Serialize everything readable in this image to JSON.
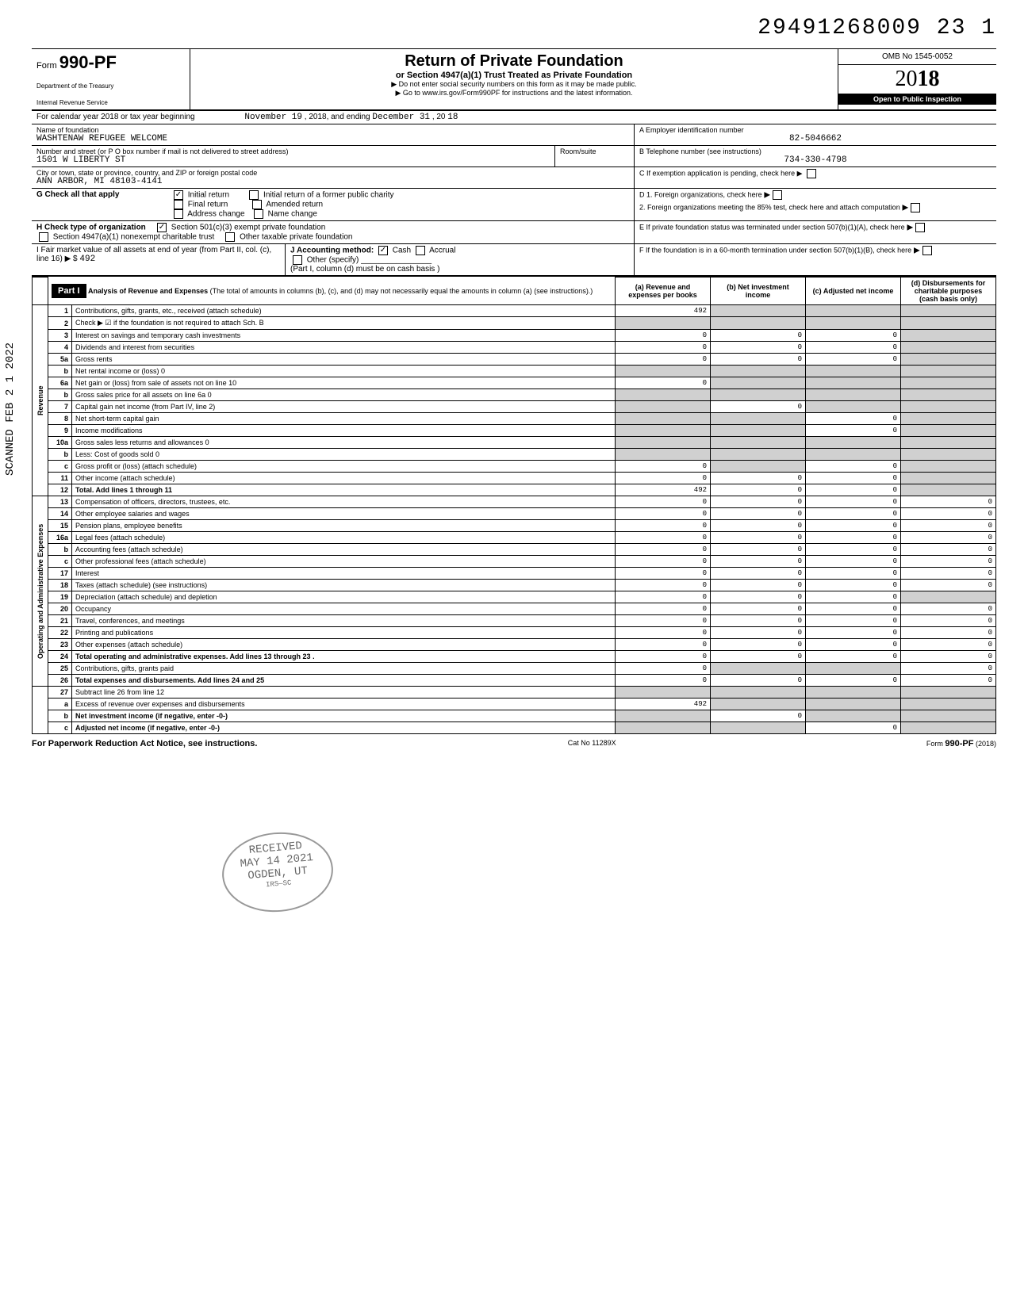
{
  "top_number": "29491268009 23  1",
  "form": {
    "name_prefix": "Form",
    "name": "990-PF",
    "dept1": "Department of the Treasury",
    "dept2": "Internal Revenue Service",
    "title": "Return of Private Foundation",
    "subtitle": "or Section 4947(a)(1) Trust Treated as Private Foundation",
    "warn": "▶ Do not enter social security numbers on this form as it may be made public.",
    "goto": "▶ Go to www.irs.gov/Form990PF for instructions and the latest information.",
    "omb": "OMB No 1545-0052",
    "year_prefix": "20",
    "year_bold": "18",
    "inspection": "Open to Public Inspection"
  },
  "period": {
    "label_a": "For calendar year 2018 or tax year beginning",
    "begin": "November 19",
    "label_b": ", 2018, and ending",
    "end": "December 31",
    "label_c": ", 20",
    "end_yr": "18"
  },
  "ident": {
    "name_label": "Name of foundation",
    "name": "WASHTENAW REFUGEE WELCOME",
    "street_label": "Number and street (or P O box number if mail is not delivered to street address)",
    "street": "1501 W LIBERTY ST",
    "room_label": "Room/suite",
    "city_label": "City or town, state or province, country, and ZIP or foreign postal code",
    "city": "ANN ARBOR, MI 48103-4141",
    "ein_label": "A  Employer identification number",
    "ein": "82-5046662",
    "tel_label": "B  Telephone number (see instructions)",
    "tel": "734-330-4798",
    "c_label": "C  If exemption application is pending, check here ▶"
  },
  "g_row": {
    "label": "G  Check all that apply",
    "opts": [
      "Initial return",
      "Final return",
      "Address change",
      "Initial return of a former public charity",
      "Amended return",
      "Name change"
    ],
    "d_label": "D  1. Foreign organizations, check here",
    "d2_label": "2. Foreign organizations meeting the 85% test, check here and attach computation"
  },
  "h_row": {
    "label": "H  Check type of organization",
    "opt1": "Section 501(c)(3) exempt private foundation",
    "opt2": "Section 4947(a)(1) nonexempt charitable trust",
    "opt3": "Other taxable private foundation",
    "e_label": "E  If private foundation status was terminated under section 507(b)(1)(A), check here"
  },
  "i_row": {
    "label": "I   Fair market value of all assets at end of year (from Part II, col. (c), line 16) ▶ $",
    "value": "492",
    "j_label": "J  Accounting method:",
    "j_cash": "Cash",
    "j_accrual": "Accrual",
    "j_other": "Other (specify)",
    "j_note": "(Part I, column (d) must be on cash basis )",
    "f_label": "F  If the foundation is in a 60-month termination under section 507(b)(1)(B), check here"
  },
  "part1": {
    "header": "Part I",
    "title": "Analysis of Revenue and Expenses",
    "title_note": "(The total of amounts in columns (b), (c), and (d) may not necessarily equal the amounts in column (a) (see instructions).)",
    "col_a": "(a) Revenue and expenses per books",
    "col_b": "(b) Net investment income",
    "col_c": "(c) Adjusted net income",
    "col_d": "(d) Disbursements for charitable purposes (cash basis only)"
  },
  "sections": {
    "revenue": "Revenue",
    "expenses": "Operating and Administrative Expenses"
  },
  "lines": [
    {
      "n": "1",
      "d": "Contributions, gifts, grants, etc., received (attach schedule)",
      "a": "492",
      "b": "",
      "c": "",
      "dd": "",
      "sb": true,
      "sc": true,
      "sd": true
    },
    {
      "n": "2",
      "d": "Check ▶ ☑ if the foundation is not required to attach Sch. B",
      "a": "",
      "b": "",
      "c": "",
      "dd": "",
      "sa": true,
      "sb": true,
      "sc": true,
      "sd": true
    },
    {
      "n": "3",
      "d": "Interest on savings and temporary cash investments",
      "a": "0",
      "b": "0",
      "c": "0",
      "dd": "",
      "sd": true
    },
    {
      "n": "4",
      "d": "Dividends and interest from securities",
      "a": "0",
      "b": "0",
      "c": "0",
      "dd": "",
      "sd": true
    },
    {
      "n": "5a",
      "d": "Gross rents",
      "a": "0",
      "b": "0",
      "c": "0",
      "dd": "",
      "sd": true
    },
    {
      "n": "b",
      "d": "Net rental income or (loss)                                          0",
      "a": "",
      "b": "",
      "c": "",
      "dd": "",
      "sa": true,
      "sb": true,
      "sc": true,
      "sd": true
    },
    {
      "n": "6a",
      "d": "Net gain or (loss) from sale of assets not on line 10",
      "a": "0",
      "b": "",
      "c": "",
      "dd": "",
      "sb": true,
      "sc": true,
      "sd": true
    },
    {
      "n": "b",
      "d": "Gross sales price for all assets on line 6a                      0",
      "a": "",
      "b": "",
      "c": "",
      "dd": "",
      "sa": true,
      "sb": true,
      "sc": true,
      "sd": true
    },
    {
      "n": "7",
      "d": "Capital gain net income (from Part IV, line 2)",
      "a": "",
      "b": "0",
      "c": "",
      "dd": "",
      "sa": true,
      "sc": true,
      "sd": true
    },
    {
      "n": "8",
      "d": "Net short-term capital gain",
      "a": "",
      "b": "",
      "c": "0",
      "dd": "",
      "sa": true,
      "sb": true,
      "sd": true
    },
    {
      "n": "9",
      "d": "Income modifications",
      "a": "",
      "b": "",
      "c": "0",
      "dd": "",
      "sa": true,
      "sb": true,
      "sd": true
    },
    {
      "n": "10a",
      "d": "Gross sales less returns and allowances                    0",
      "a": "",
      "b": "",
      "c": "",
      "dd": "",
      "sa": true,
      "sb": true,
      "sc": true,
      "sd": true
    },
    {
      "n": "b",
      "d": "Less: Cost of goods sold                                              0",
      "a": "",
      "b": "",
      "c": "",
      "dd": "",
      "sa": true,
      "sb": true,
      "sc": true,
      "sd": true
    },
    {
      "n": "c",
      "d": "Gross profit or (loss) (attach schedule)",
      "a": "0",
      "b": "",
      "c": "0",
      "dd": "",
      "sb": true,
      "sd": true
    },
    {
      "n": "11",
      "d": "Other income (attach schedule)",
      "a": "0",
      "b": "0",
      "c": "0",
      "dd": "",
      "sd": true
    },
    {
      "n": "12",
      "d": "Total. Add lines 1 through 11",
      "a": "492",
      "b": "0",
      "c": "0",
      "dd": "",
      "sd": true,
      "bold": true
    }
  ],
  "exp_lines": [
    {
      "n": "13",
      "d": "Compensation of officers, directors, trustees, etc.",
      "a": "0",
      "b": "0",
      "c": "0",
      "dd": "0"
    },
    {
      "n": "14",
      "d": "Other employee salaries and wages",
      "a": "0",
      "b": "0",
      "c": "0",
      "dd": "0"
    },
    {
      "n": "15",
      "d": "Pension plans, employee benefits",
      "a": "0",
      "b": "0",
      "c": "0",
      "dd": "0"
    },
    {
      "n": "16a",
      "d": "Legal fees (attach schedule)",
      "a": "0",
      "b": "0",
      "c": "0",
      "dd": "0"
    },
    {
      "n": "b",
      "d": "Accounting fees (attach schedule)",
      "a": "0",
      "b": "0",
      "c": "0",
      "dd": "0"
    },
    {
      "n": "c",
      "d": "Other professional fees (attach schedule)",
      "a": "0",
      "b": "0",
      "c": "0",
      "dd": "0"
    },
    {
      "n": "17",
      "d": "Interest",
      "a": "0",
      "b": "0",
      "c": "0",
      "dd": "0"
    },
    {
      "n": "18",
      "d": "Taxes (attach schedule) (see instructions)",
      "a": "0",
      "b": "0",
      "c": "0",
      "dd": "0"
    },
    {
      "n": "19",
      "d": "Depreciation (attach schedule) and depletion",
      "a": "0",
      "b": "0",
      "c": "0",
      "dd": "",
      "sd": true
    },
    {
      "n": "20",
      "d": "Occupancy",
      "a": "0",
      "b": "0",
      "c": "0",
      "dd": "0"
    },
    {
      "n": "21",
      "d": "Travel, conferences, and meetings",
      "a": "0",
      "b": "0",
      "c": "0",
      "dd": "0"
    },
    {
      "n": "22",
      "d": "Printing and publications",
      "a": "0",
      "b": "0",
      "c": "0",
      "dd": "0"
    },
    {
      "n": "23",
      "d": "Other expenses (attach schedule)",
      "a": "0",
      "b": "0",
      "c": "0",
      "dd": "0"
    },
    {
      "n": "24",
      "d": "Total operating and administrative expenses. Add lines 13 through 23 .",
      "a": "0",
      "b": "0",
      "c": "0",
      "dd": "0",
      "bold": true
    },
    {
      "n": "25",
      "d": "Contributions, gifts, grants paid",
      "a": "0",
      "b": "",
      "c": "",
      "dd": "0",
      "sb": true,
      "sc": true
    },
    {
      "n": "26",
      "d": "Total expenses and disbursements. Add lines 24 and 25",
      "a": "0",
      "b": "0",
      "c": "0",
      "dd": "0",
      "bold": true
    }
  ],
  "bottom_lines": [
    {
      "n": "27",
      "d": "Subtract line 26 from line 12",
      "a": "",
      "b": "",
      "c": "",
      "dd": "",
      "sa": true,
      "sb": true,
      "sc": true,
      "sd": true
    },
    {
      "n": "a",
      "d": "Excess of revenue over expenses and disbursements",
      "a": "492",
      "b": "",
      "c": "",
      "dd": "",
      "sb": true,
      "sc": true,
      "sd": true
    },
    {
      "n": "b",
      "d": "Net investment income (if negative, enter -0-)",
      "a": "",
      "b": "0",
      "c": "",
      "dd": "",
      "sa": true,
      "sc": true,
      "sd": true,
      "bold": true
    },
    {
      "n": "c",
      "d": "Adjusted net income (if negative, enter -0-)",
      "a": "",
      "b": "",
      "c": "0",
      "dd": "",
      "sa": true,
      "sb": true,
      "sd": true,
      "bold": true
    }
  ],
  "footer": {
    "left": "For Paperwork Reduction Act Notice, see instructions.",
    "mid": "Cat No 11289X",
    "right_prefix": "Form ",
    "right_form": "990-PF",
    "right_suffix": " (2018)"
  },
  "stamp1": "`",
  "vstamp": "SCANNED FEB 2 1 2022",
  "received": {
    "l1": "RECEIVED",
    "l2": "MAY 14 2021",
    "l3": "OGDEN, UT",
    "l4": "IRS—SC"
  }
}
